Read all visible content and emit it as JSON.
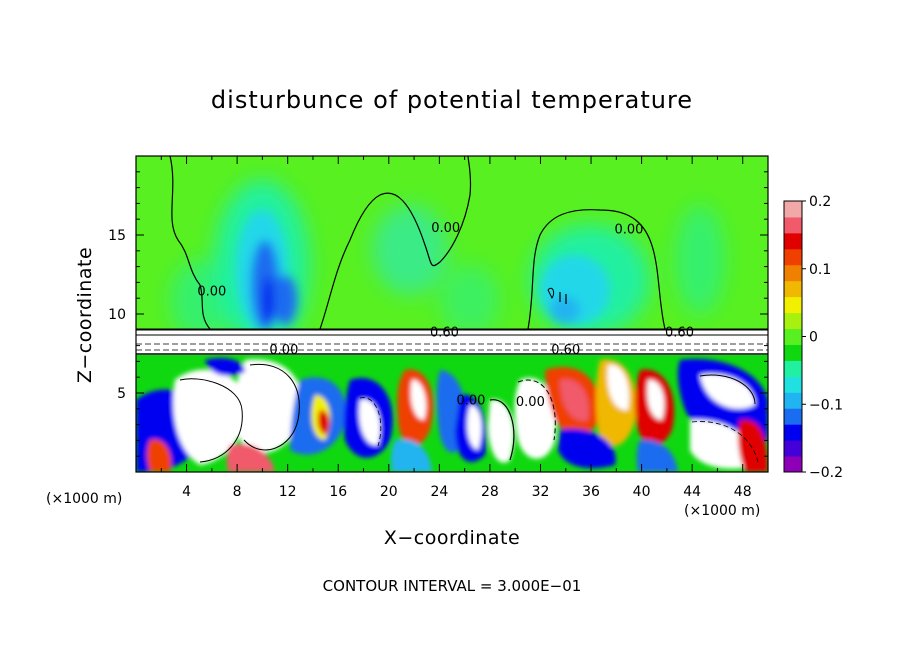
{
  "chart_data": {
    "type": "heatmap",
    "title": "disturbunce of potential temperature",
    "xlabel": "X−coordinate",
    "ylabel": "Z−coordinate",
    "x_unit_label": "(×1000 m)",
    "x_ticks": [
      4,
      8,
      12,
      16,
      20,
      24,
      28,
      32,
      36,
      40,
      44,
      48
    ],
    "y_ticks": [
      5,
      10,
      15
    ],
    "xlim": [
      0,
      50
    ],
    "ylim": [
      0,
      20
    ],
    "colorbar": {
      "ticks": [
        "0.2",
        "0.1",
        "0",
        "−0.1",
        "−0.2"
      ],
      "range": [
        -0.2,
        0.2
      ],
      "colors": [
        "#8e00b8",
        "#4400d8",
        "#0000f0",
        "#1a6cf0",
        "#20b4f0",
        "#20e0e0",
        "#20f0a0",
        "#10d810",
        "#58f020",
        "#a8f010",
        "#f0f000",
        "#f0b800",
        "#f08000",
        "#f04000",
        "#e00000",
        "#f05a6a",
        "#f0a8a8"
      ]
    },
    "contour_labels": [
      {
        "text": "0.00",
        "x": 6,
        "y": 11.5
      },
      {
        "text": "0.00",
        "x": 24.5,
        "y": 15.5
      },
      {
        "text": "0.00",
        "x": 39,
        "y": 15.4
      },
      {
        "text": "0.60",
        "x": 24.4,
        "y": 8.9
      },
      {
        "text": "0.60",
        "x": 43,
        "y": 8.9
      },
      {
        "text": "0.60",
        "x": 34,
        "y": 7.8
      },
      {
        "text": "0.00",
        "x": 11.7,
        "y": 7.8
      },
      {
        "text": "0.00",
        "x": 26.5,
        "y": 4.6
      },
      {
        "text": "0.00",
        "x": 31.2,
        "y": 4.5
      }
    ],
    "contour_interval": "3.000E−01",
    "grid": false
  },
  "footer": "CONTOUR INTERVAL = 3.000E−01"
}
